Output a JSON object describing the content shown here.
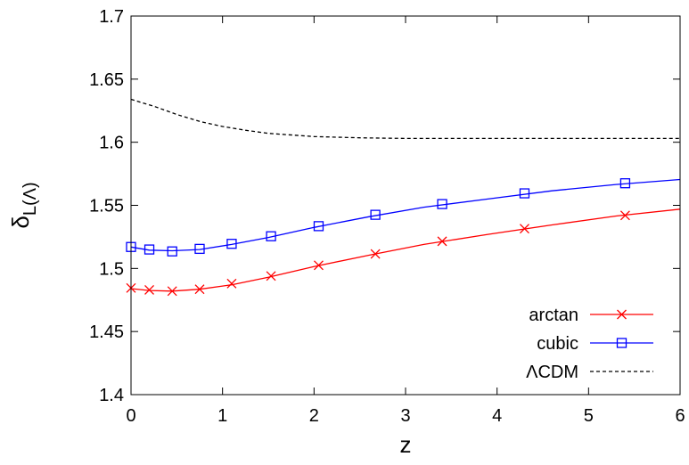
{
  "chart_data": {
    "type": "line",
    "title": "",
    "xlabel": "z",
    "ylabel": "δL(Λ)",
    "ylabel_parts": {
      "base": "δ",
      "sub": "L(Λ)"
    },
    "xlim": [
      0,
      6
    ],
    "ylim": [
      1.4,
      1.7
    ],
    "xticks": [
      "0",
      "1",
      "2",
      "3",
      "4",
      "5",
      "6"
    ],
    "yticks": [
      "1.4",
      "1.45",
      "1.5",
      "1.55",
      "1.6",
      "1.65",
      "1.7"
    ],
    "grid": false,
    "legend_position": "bottom-right",
    "series": [
      {
        "name": "arctan",
        "color": "#ff0000",
        "line_style": "solid",
        "marker": "x",
        "x": [
          0,
          0.2,
          0.45,
          0.75,
          1.1,
          1.5,
          2.0,
          2.6,
          3.2,
          3.9,
          4.6,
          5.3,
          6.0
        ],
        "y": [
          1.484,
          1.4825,
          1.482,
          1.4835,
          1.487,
          1.493,
          1.5015,
          1.5105,
          1.519,
          1.527,
          1.5345,
          1.5415,
          1.547
        ],
        "marker_x": [
          0,
          0.2,
          0.45,
          0.75,
          1.1,
          1.53,
          2.05,
          2.67,
          3.4,
          4.3,
          5.4
        ],
        "marker_y": [
          1.4845,
          1.483,
          1.482,
          1.4835,
          1.488,
          1.494,
          1.5025,
          1.5115,
          1.5215,
          1.5315,
          1.542
        ]
      },
      {
        "name": "cubic",
        "color": "#0000ff",
        "line_style": "solid",
        "marker": "square",
        "x": [
          0,
          0.2,
          0.45,
          0.75,
          1.1,
          1.5,
          2.0,
          2.6,
          3.2,
          3.9,
          4.6,
          5.3,
          6.0
        ],
        "y": [
          1.517,
          1.5145,
          1.514,
          1.515,
          1.519,
          1.5245,
          1.5325,
          1.541,
          1.5485,
          1.555,
          1.5615,
          1.5665,
          1.5705
        ],
        "marker_x": [
          0,
          0.2,
          0.45,
          0.75,
          1.1,
          1.53,
          2.05,
          2.67,
          3.4,
          4.3,
          5.4
        ],
        "marker_y": [
          1.517,
          1.515,
          1.5135,
          1.5155,
          1.5195,
          1.5255,
          1.5335,
          1.5425,
          1.551,
          1.5595,
          1.5675
        ]
      },
      {
        "name": "ΛCDM",
        "color": "#000000",
        "line_style": "dashed",
        "marker": "none",
        "x": [
          0,
          0.25,
          0.5,
          0.75,
          1.0,
          1.25,
          1.5,
          2.0,
          2.5,
          3.0,
          4.0,
          5.0,
          6.0
        ],
        "y": [
          1.634,
          1.6285,
          1.622,
          1.6165,
          1.6125,
          1.6095,
          1.607,
          1.6045,
          1.6035,
          1.603,
          1.603,
          1.603,
          1.603
        ]
      }
    ]
  }
}
